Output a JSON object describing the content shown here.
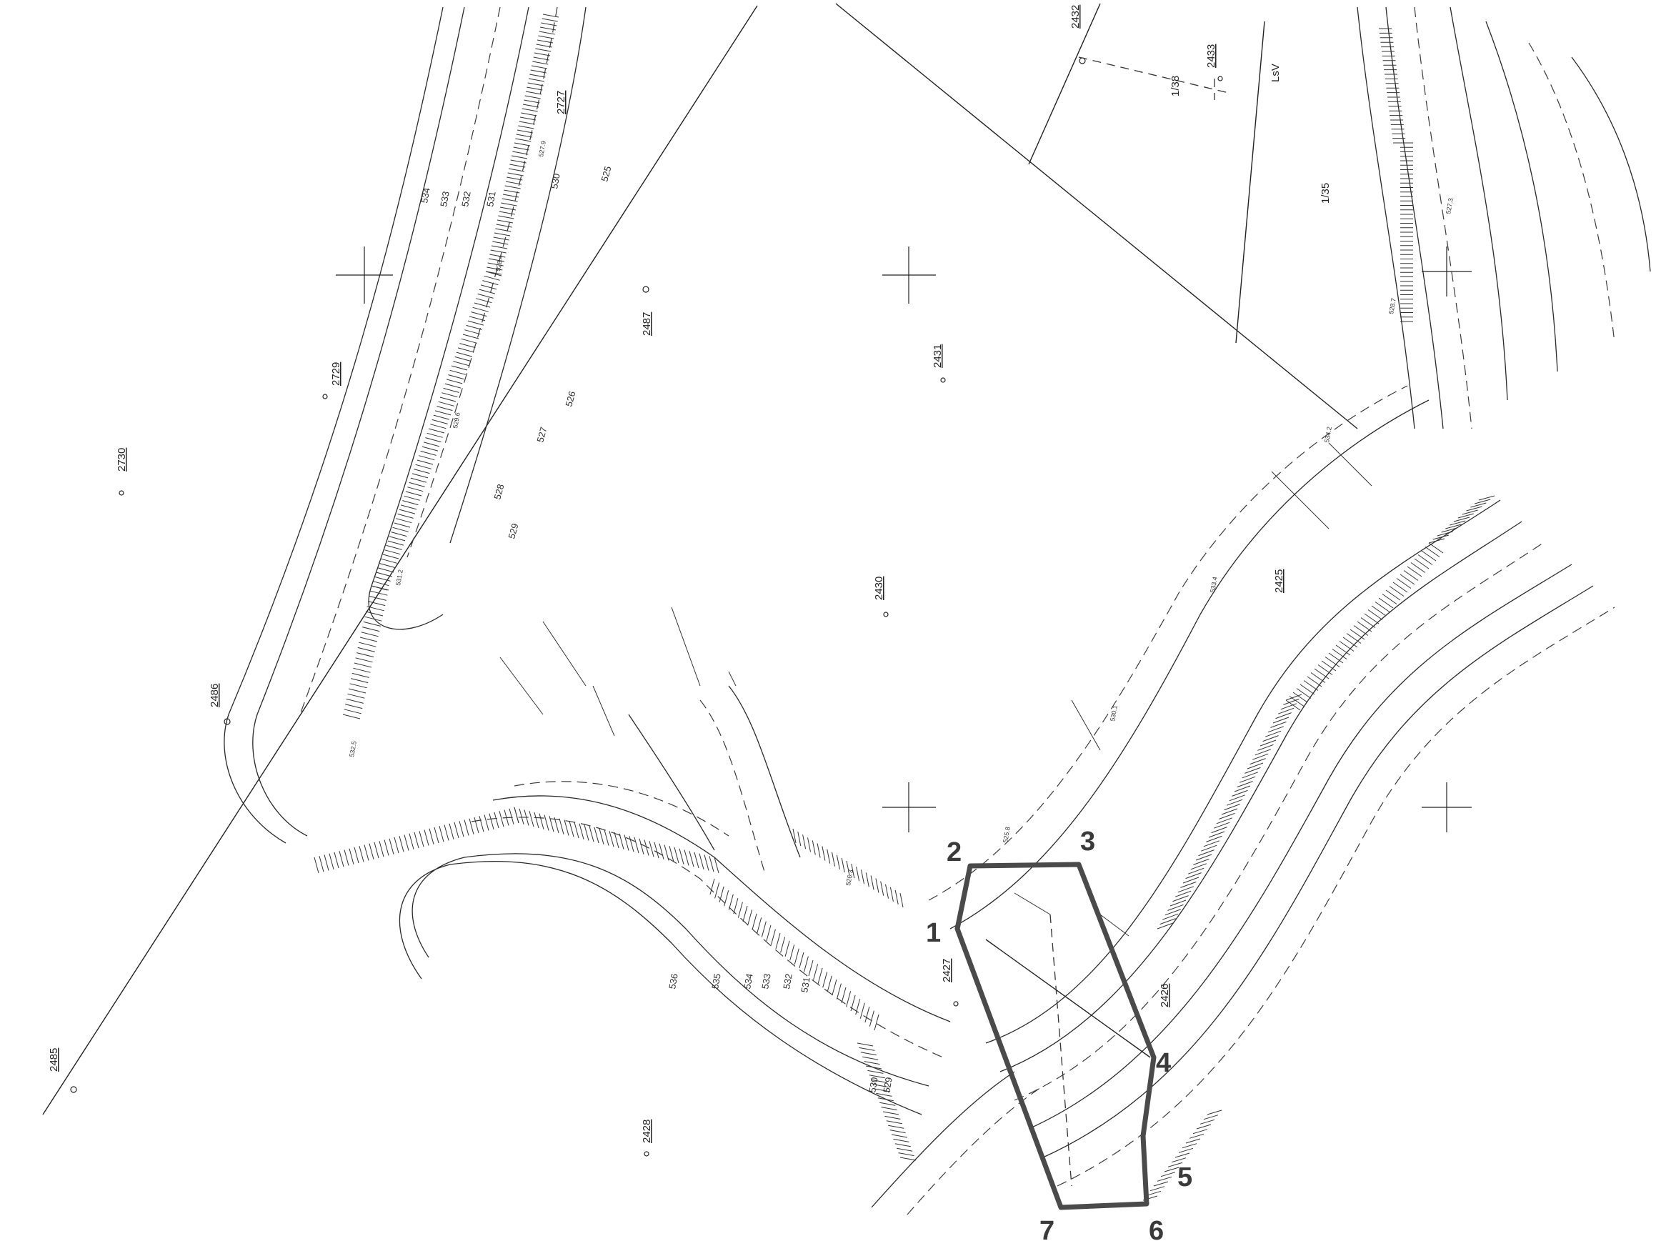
{
  "parcels": [
    {
      "label": "2730"
    },
    {
      "label": "2729"
    },
    {
      "label": "2727"
    },
    {
      "label": "2487"
    },
    {
      "label": "2486"
    },
    {
      "label": "2485"
    },
    {
      "label": "2431"
    },
    {
      "label": "2430"
    },
    {
      "label": "2428"
    },
    {
      "label": "2432"
    },
    {
      "label": "2433"
    },
    {
      "label": "2425"
    },
    {
      "label": "2426"
    },
    {
      "label": "2427"
    }
  ],
  "notes": [
    {
      "text": "1/38"
    },
    {
      "text": "LsV"
    },
    {
      "text": "1/35"
    }
  ],
  "contour_labels": [
    "534",
    "533",
    "532",
    "531",
    "530",
    "529",
    "528",
    "527",
    "526",
    "525",
    "536",
    "535",
    "534",
    "533",
    "532",
    "531",
    "530",
    "529"
  ],
  "vertex_labels": [
    "1",
    "2",
    "3",
    "4",
    "5",
    "6",
    "7"
  ],
  "elevation_samples": [
    "532.5",
    "531.2",
    "529.6",
    "528.4",
    "527.9",
    "526.3",
    "525.8",
    "530.1",
    "533.4",
    "534.2",
    "528.7",
    "527.3"
  ],
  "colors": {
    "linework": "#2a2a2a",
    "polygon": "#4a4a4a",
    "background": "#ffffff"
  }
}
